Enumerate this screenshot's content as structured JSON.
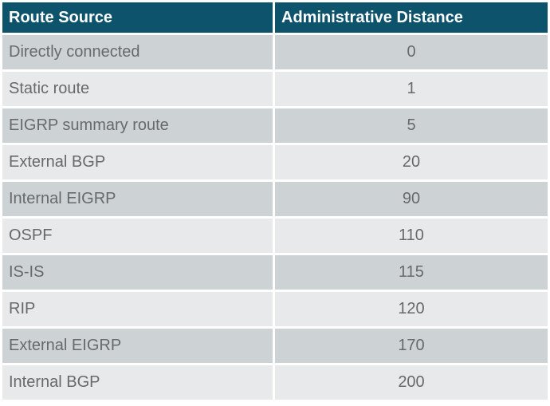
{
  "table": {
    "headers": [
      "Route Source",
      "Administrative Distance"
    ],
    "rows": [
      {
        "source": "Directly connected",
        "distance": "0"
      },
      {
        "source": "Static route",
        "distance": "1"
      },
      {
        "source": "EIGRP summary route",
        "distance": "5"
      },
      {
        "source": "External BGP",
        "distance": "20"
      },
      {
        "source": "Internal EIGRP",
        "distance": "90"
      },
      {
        "source": "OSPF",
        "distance": "110"
      },
      {
        "source": "IS-IS",
        "distance": "115"
      },
      {
        "source": "RIP",
        "distance": "120"
      },
      {
        "source": "External EIGRP",
        "distance": "170"
      },
      {
        "source": "Internal BGP",
        "distance": "200"
      }
    ]
  },
  "colors": {
    "header_bg": "#0d536b",
    "header_text": "#ffffff",
    "row_dark": "#cdd2d5",
    "row_light": "#e7e9eb",
    "cell_text": "#68696b",
    "page_bg": "#ffffff"
  }
}
